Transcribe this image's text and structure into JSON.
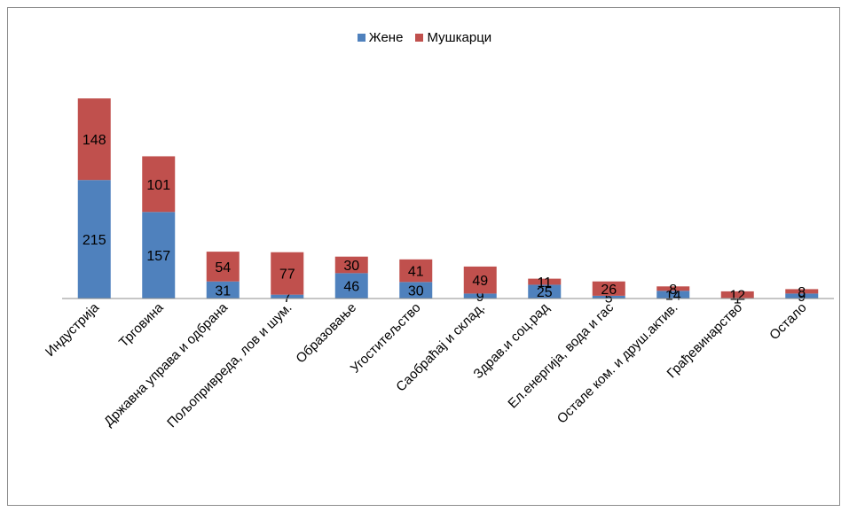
{
  "chart_data": {
    "type": "bar",
    "stacked": true,
    "title": "",
    "xlabel": "",
    "ylabel": "",
    "legend_position": "top",
    "grid": false,
    "categories": [
      "Индустрија",
      "Трговина",
      "Државна управа и одбрана",
      "Пољопривреда, лов и шум.",
      "Образовање",
      "Угоститељство",
      "Саобраћај и склад.",
      "Здрав.и соц.рад",
      "Ел.енергија, вода и гас",
      "Остале ком. и друш.актив.",
      "Грађевинарство",
      "Остало"
    ],
    "series": [
      {
        "name": "Жене",
        "color": "#4f81bd",
        "values": [
          215,
          157,
          31,
          7,
          46,
          30,
          9,
          25,
          5,
          14,
          1,
          9
        ]
      },
      {
        "name": "Мушкарци",
        "color": "#c0504d",
        "values": [
          148,
          101,
          54,
          77,
          30,
          41,
          49,
          11,
          26,
          8,
          12,
          8
        ]
      }
    ]
  }
}
